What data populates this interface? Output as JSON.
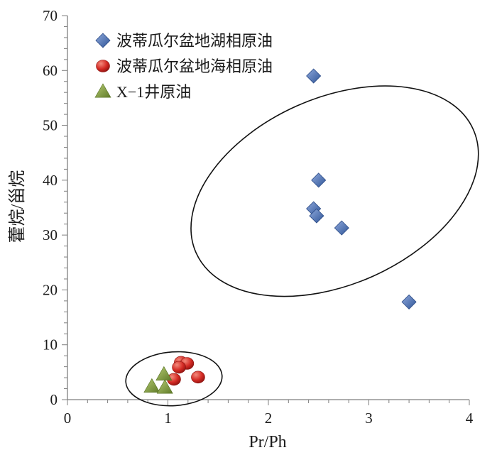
{
  "chart_data": {
    "type": "scatter",
    "xlabel": "Pr/Ph",
    "ylabel": "藿烷/甾烷",
    "xlim": [
      0,
      4
    ],
    "ylim": [
      0,
      70
    ],
    "x_ticks": [
      "0",
      "1",
      "2",
      "3",
      "4"
    ],
    "y_ticks": [
      "0",
      "10",
      "20",
      "30",
      "40",
      "50",
      "60",
      "70"
    ],
    "grid": false,
    "legend_position": "top-left",
    "series": [
      {
        "name": "波蒂瓜尔盆地湖相原油",
        "marker": "diamond",
        "color": "#4a6fb5",
        "points": [
          {
            "x": 2.45,
            "y": 59
          },
          {
            "x": 2.5,
            "y": 40
          },
          {
            "x": 2.45,
            "y": 34.8
          },
          {
            "x": 2.48,
            "y": 33.5
          },
          {
            "x": 2.73,
            "y": 31.3
          },
          {
            "x": 3.4,
            "y": 17.8
          }
        ]
      },
      {
        "name": "波蒂瓜尔盆地海相原油",
        "marker": "circle",
        "color": "#d42a24",
        "points": [
          {
            "x": 1.13,
            "y": 6.8
          },
          {
            "x": 1.19,
            "y": 6.6
          },
          {
            "x": 1.11,
            "y": 5.9
          },
          {
            "x": 1.06,
            "y": 3.7
          },
          {
            "x": 1.3,
            "y": 4.1
          }
        ]
      },
      {
        "name": "X−1井原油",
        "marker": "triangle",
        "color": "#7f9a3a",
        "points": [
          {
            "x": 0.96,
            "y": 4.6
          },
          {
            "x": 0.84,
            "y": 2.4
          },
          {
            "x": 0.97,
            "y": 2.2
          }
        ]
      }
    ],
    "annotations": [
      {
        "type": "ellipse",
        "cx": 2.66,
        "cy": 38,
        "rx": 1.51,
        "ry": 17,
        "angle": -24
      },
      {
        "type": "ellipse",
        "cx": 1.06,
        "cy": 3.8,
        "rx": 0.48,
        "ry": 4.9,
        "angle": -4
      }
    ]
  }
}
